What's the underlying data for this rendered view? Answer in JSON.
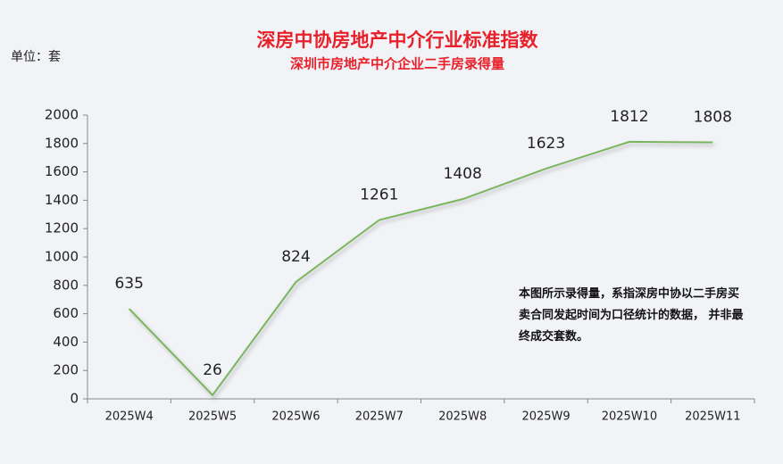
{
  "chart_data": {
    "type": "line",
    "title": "深房中协房地产中介行业标准指数",
    "subtitle": "深圳市房地产中介企业二手房录得量",
    "unit_label": "单位：套",
    "annotation": "本图所示录得量，系指深房中协以二手房买卖合同发起时间为口径统计的数据， 并非最终成交套数。",
    "categories": [
      "2025W4",
      "2025W5",
      "2025W6",
      "2025W7",
      "2025W8",
      "2025W9",
      "2025W10",
      "2025W11"
    ],
    "values": [
      635,
      26,
      824,
      1261,
      1408,
      1623,
      1812,
      1808
    ],
    "color": "#7cb55f",
    "ylim": [
      0,
      2000
    ],
    "yticks": [
      0,
      200,
      400,
      600,
      800,
      1000,
      1200,
      1400,
      1600,
      1800,
      2000
    ],
    "grid": false
  }
}
